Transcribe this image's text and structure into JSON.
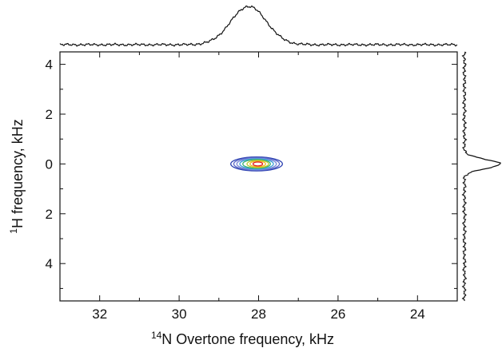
{
  "chart_data": {
    "type": "contour",
    "title": "",
    "xlabel": {
      "superscript": "14",
      "text": "N Overtone frequency, kHz"
    },
    "ylabel": {
      "superscript": "1",
      "text": "H frequency, kHz"
    },
    "xlim": [
      33.0,
      23.0
    ],
    "ylim": [
      5.5,
      -4.5
    ],
    "x_reversed": true,
    "x_ticks": [
      32,
      30,
      28,
      26,
      24
    ],
    "x_tick_labels": [
      "32",
      "30",
      "28",
      "26",
      "24"
    ],
    "x_minor_ticks": [
      33,
      31,
      29,
      27,
      25,
      23
    ],
    "y_ticks": [
      -4,
      -2,
      0,
      2,
      4
    ],
    "y_tick_labels": [
      "4",
      "2",
      "0",
      "2",
      "4"
    ],
    "y_minor_ticks": [
      -5,
      -3,
      -1,
      1,
      3,
      5
    ],
    "grid": false,
    "peak": {
      "x": 28.05,
      "y": 0.0,
      "half_width_x": 0.65,
      "half_width_y": 0.28
    },
    "contour_levels": [
      {
        "level": 1,
        "color": "#2a3fb0"
      },
      {
        "level": 2,
        "color": "#5866c8"
      },
      {
        "level": 3,
        "color": "#7a8ad8"
      },
      {
        "level": 4,
        "color": "#3aa0d8"
      },
      {
        "level": 5,
        "color": "#34b070"
      },
      {
        "level": 6,
        "color": "#b6c828"
      },
      {
        "level": 7,
        "color": "#f0b420"
      },
      {
        "level": 8,
        "color": "#e02020"
      }
    ],
    "projections": {
      "top": {
        "axis": "x",
        "peak_at": 28.25,
        "width": 0.45
      },
      "right": {
        "axis": "y",
        "peak_at": 0.0,
        "width": 0.18
      }
    },
    "colors": {
      "axes": "#111111",
      "projection_line": "#111111"
    }
  }
}
